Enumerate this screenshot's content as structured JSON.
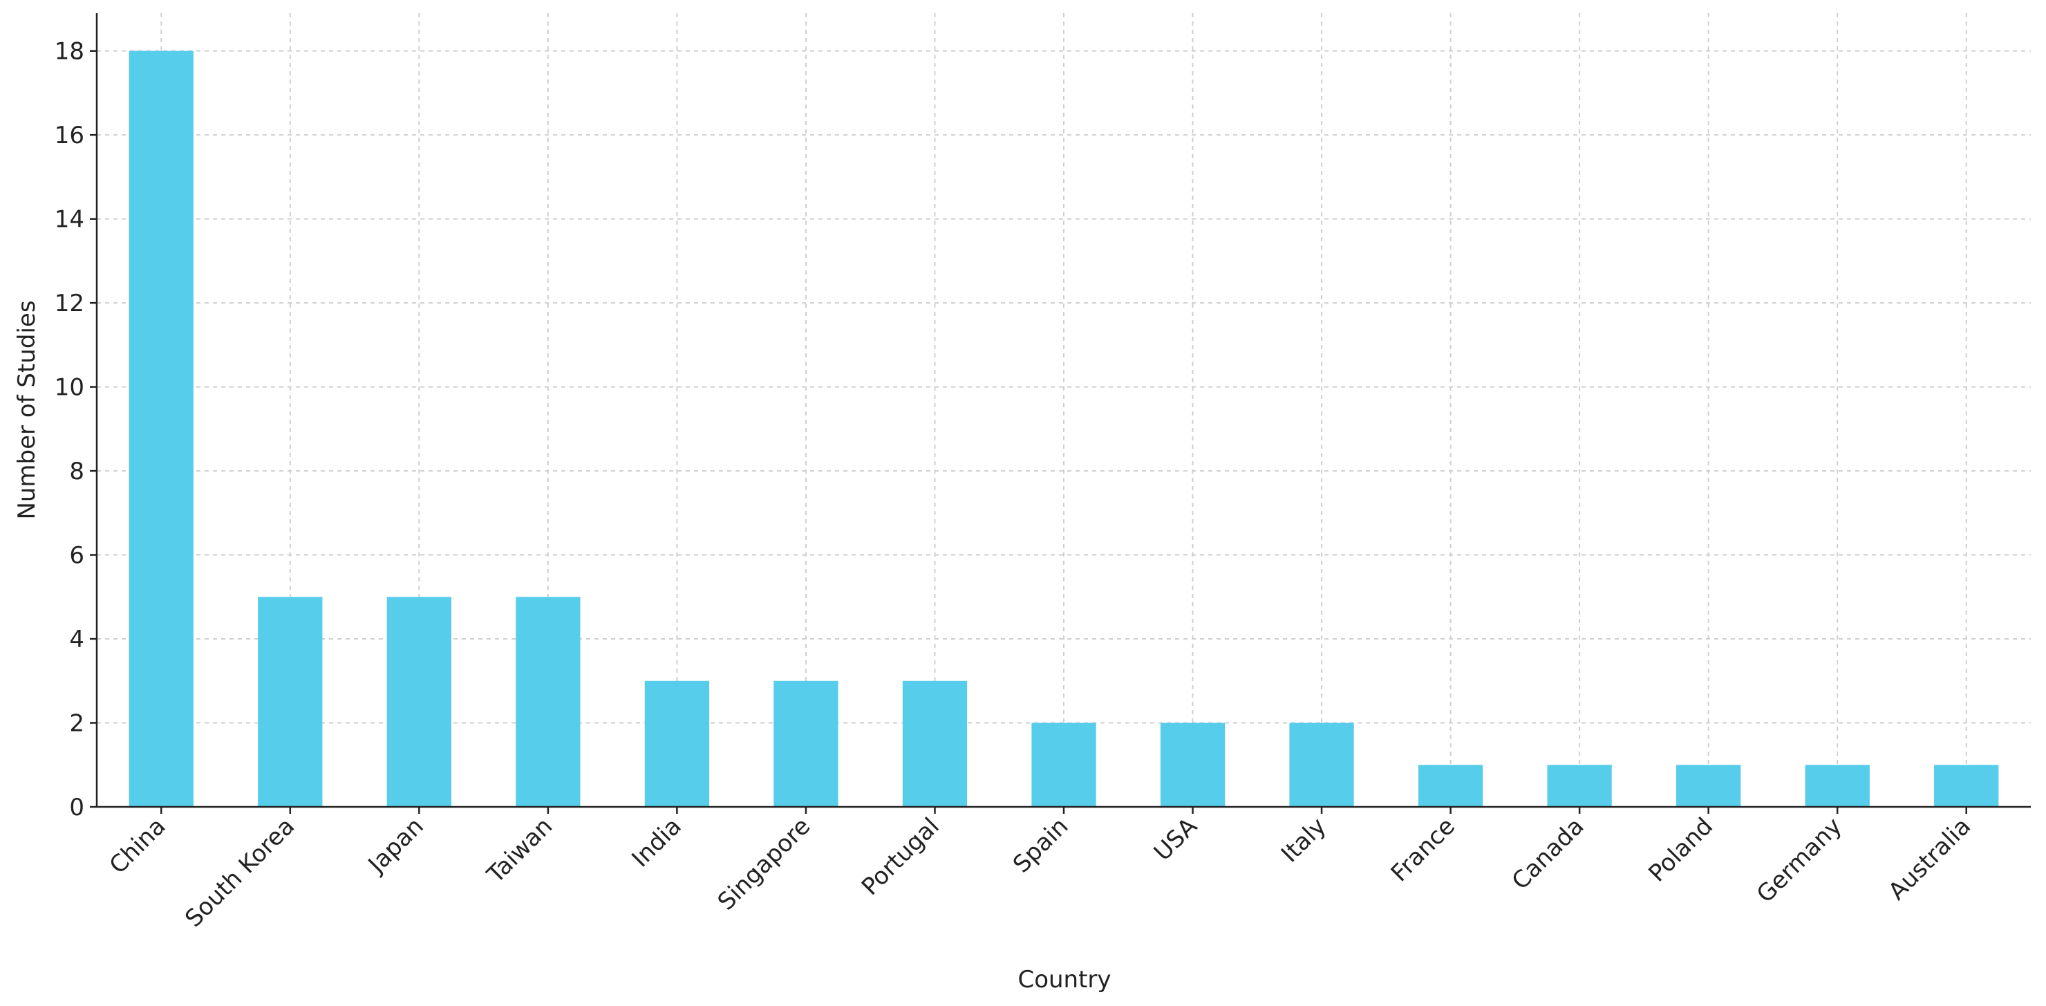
{
  "chart_data": {
    "type": "bar",
    "x_label": "Country",
    "y_label": "Number of Studies",
    "categories": [
      "China",
      "South Korea",
      "Japan",
      "Taiwan",
      "India",
      "Singapore",
      "Portugal",
      "Spain",
      "USA",
      "Italy",
      "France",
      "Canada",
      "Poland",
      "Germany",
      "Australia"
    ],
    "values": [
      18,
      5,
      5,
      5,
      3,
      3,
      3,
      2,
      2,
      2,
      1,
      1,
      1,
      1,
      1
    ],
    "color": "#56cdea",
    "ylim": [
      0,
      18.9
    ],
    "yticks": [
      0,
      2,
      4,
      6,
      8,
      10,
      12,
      14,
      16,
      18
    ],
    "grid": true
  }
}
